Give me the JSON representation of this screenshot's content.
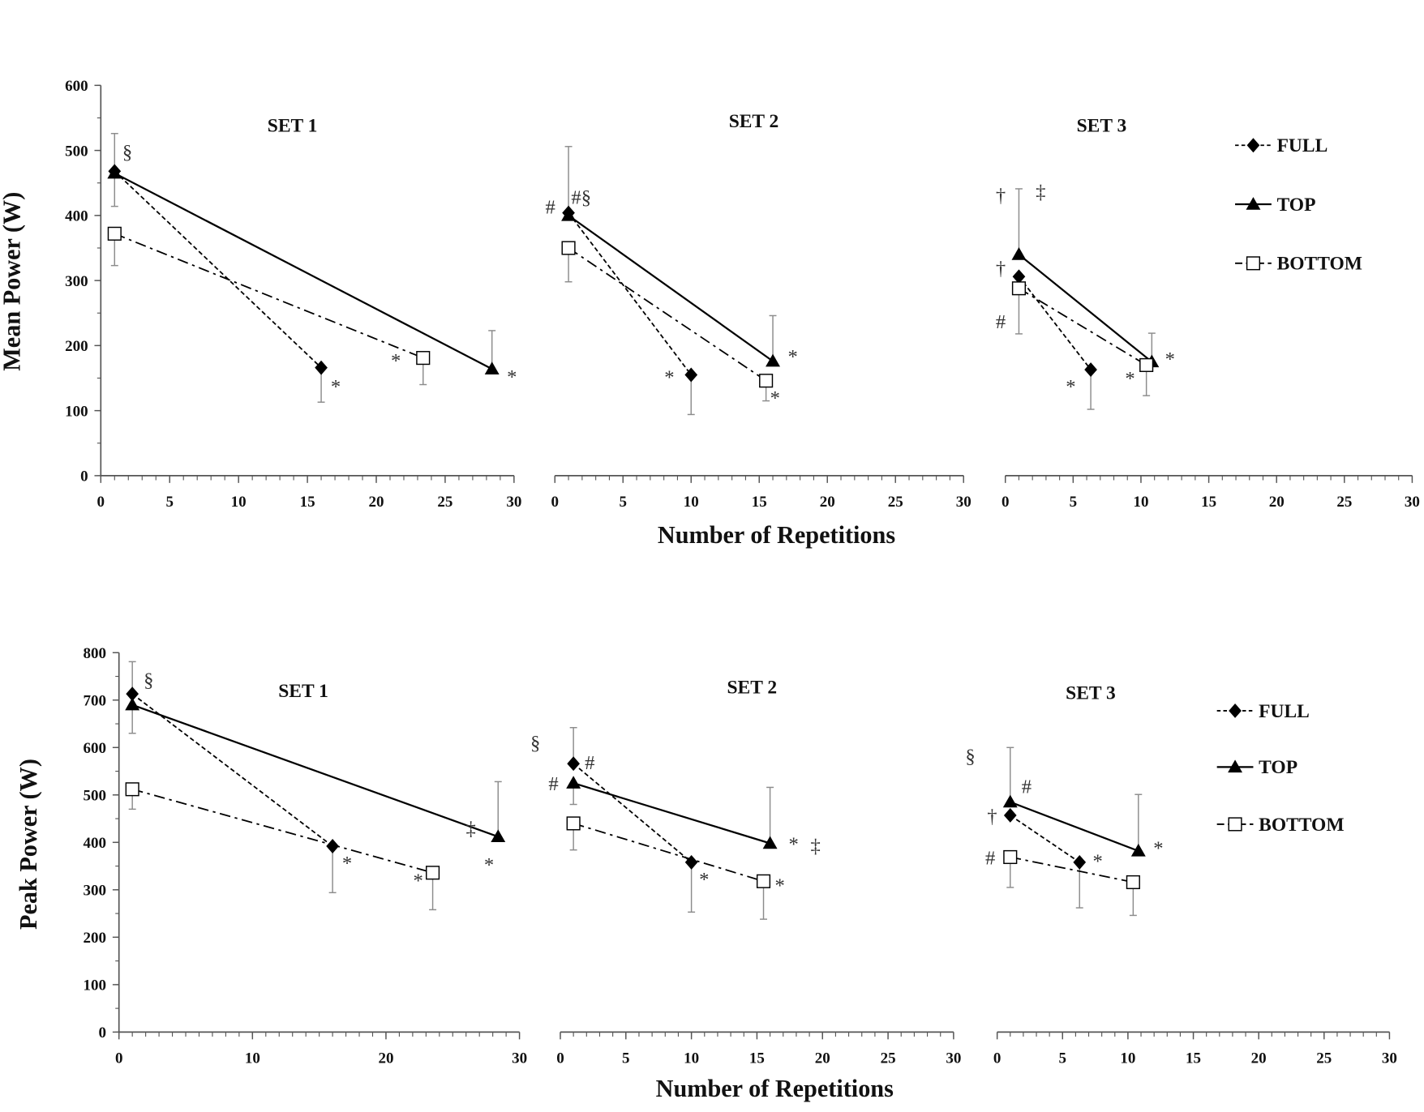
{
  "chart_data": [
    {
      "type": "line",
      "ylabel": "Mean Power (W)",
      "xlabel": "Number of Repetitions",
      "ylim": [
        0,
        600
      ],
      "yticks": [
        0,
        100,
        200,
        300,
        400,
        500,
        600
      ],
      "legend": {
        "placement": "right",
        "entries": [
          "FULL",
          "TOP",
          "BOTTOM"
        ]
      },
      "panels": [
        {
          "title": "SET 1",
          "xlim": [
            0,
            30
          ],
          "xticks": [
            0,
            5,
            10,
            15,
            20,
            25,
            30
          ],
          "series": [
            {
              "name": "FULL",
              "x": [
                1,
                16
              ],
              "y": [
                468,
                166
              ],
              "err": [
                [
                  null,
                  526
                ],
                [
                  113,
                  null
                ]
              ]
            },
            {
              "name": "TOP",
              "x": [
                1,
                28.4
              ],
              "y": [
                465,
                164
              ],
              "err": [
                [
                  414,
                  null
                ],
                [
                  null,
                  223
                ]
              ]
            },
            {
              "name": "BOTTOM",
              "x": [
                1,
                23.4
              ],
              "y": [
                372,
                181
              ],
              "err": [
                [
                  323,
                  null
                ],
                [
                  140,
                  null
                ]
              ]
            }
          ],
          "annotations": [
            {
              "text": "§",
              "series": "FULL",
              "point": 0
            },
            {
              "text": "*",
              "series": "FULL",
              "point": 1
            },
            {
              "text": "*",
              "series": "BOTTOM",
              "point": 1
            },
            {
              "text": "*",
              "series": "TOP",
              "point": 1
            }
          ]
        },
        {
          "title": "SET 2",
          "xlim": [
            0,
            30
          ],
          "xticks": [
            0,
            5,
            10,
            15,
            20,
            25,
            30
          ],
          "series": [
            {
              "name": "FULL",
              "x": [
                1,
                10
              ],
              "y": [
                404,
                155
              ],
              "err": [
                [
                  null,
                  506
                ],
                [
                  94,
                  null
                ]
              ]
            },
            {
              "name": "TOP",
              "x": [
                1,
                16
              ],
              "y": [
                400,
                176
              ],
              "err": [
                [
                  null,
                  null
                ],
                [
                  null,
                  246
                ]
              ]
            },
            {
              "name": "BOTTOM",
              "x": [
                1,
                15.5
              ],
              "y": [
                350,
                146
              ],
              "err": [
                [
                  298,
                  null
                ],
                [
                  115,
                  null
                ]
              ]
            }
          ],
          "annotations": [
            {
              "text": "#§",
              "series": "FULL",
              "point": 0
            },
            {
              "text": "#",
              "series": "TOP",
              "point": 0
            },
            {
              "text": "*",
              "series": "FULL",
              "point": 1
            },
            {
              "text": "*",
              "series": "TOP",
              "point": 1
            },
            {
              "text": "*",
              "series": "BOTTOM",
              "point": 1
            }
          ]
        },
        {
          "title": "SET 3",
          "xlim": [
            0,
            30
          ],
          "xticks": [
            0,
            5,
            10,
            15,
            20,
            25,
            30
          ],
          "series": [
            {
              "name": "FULL",
              "x": [
                1,
                6.3
              ],
              "y": [
                306,
                163
              ],
              "err": [
                [
                  null,
                  null
                ],
                [
                  102,
                  null
                ]
              ]
            },
            {
              "name": "TOP",
              "x": [
                1,
                10.8
              ],
              "y": [
                340,
                175
              ],
              "err": [
                [
                  null,
                  441
                ],
                [
                  null,
                  219
                ]
              ]
            },
            {
              "name": "BOTTOM",
              "x": [
                1,
                10.4
              ],
              "y": [
                288,
                170
              ],
              "err": [
                [
                  218,
                  null
                ],
                [
                  123,
                  null
                ]
              ]
            }
          ],
          "annotations": [
            {
              "text": "†",
              "series": "TOP",
              "point": 0
            },
            {
              "text": "†",
              "series": "FULL",
              "point": 0
            },
            {
              "text": "#",
              "series": "BOTTOM",
              "point": 0
            },
            {
              "text": "‡",
              "series": "TOP",
              "point": 0
            },
            {
              "text": "*",
              "series": "FULL",
              "point": 1
            },
            {
              "text": "*",
              "series": "BOTTOM",
              "point": 1
            },
            {
              "text": "*",
              "series": "TOP",
              "point": 1
            }
          ]
        }
      ]
    },
    {
      "type": "line",
      "ylabel": "Peak Power (W)",
      "xlabel": "Number of Repetitions",
      "ylim": [
        0,
        800
      ],
      "yticks": [
        0,
        100,
        200,
        300,
        400,
        500,
        600,
        700,
        800
      ],
      "legend": {
        "placement": "right",
        "entries": [
          "FULL",
          "TOP",
          "BOTTOM"
        ]
      },
      "panels": [
        {
          "title": "SET 1",
          "xlim": [
            0,
            30
          ],
          "xticks": [
            0,
            10,
            20,
            30
          ],
          "series": [
            {
              "name": "FULL",
              "x": [
                1,
                16
              ],
              "y": [
                713,
                392
              ],
              "err": [
                [
                  null,
                  781
                ],
                [
                  294,
                  null
                ]
              ]
            },
            {
              "name": "TOP",
              "x": [
                1,
                28.4
              ],
              "y": [
                690,
                412
              ],
              "err": [
                [
                  630,
                  null
                ],
                [
                  null,
                  528
                ]
              ]
            },
            {
              "name": "BOTTOM",
              "x": [
                1,
                23.5
              ],
              "y": [
                512,
                336
              ],
              "err": [
                [
                  470,
                  null
                ],
                [
                  258,
                  null
                ]
              ]
            }
          ],
          "annotations": [
            {
              "text": "§",
              "series": "FULL",
              "point": 0
            },
            {
              "text": "*",
              "series": "FULL",
              "point": 1
            },
            {
              "text": "*",
              "series": "BOTTOM",
              "point": 1
            },
            {
              "text": "‡",
              "series": "TOP",
              "point": 1
            },
            {
              "text": "*",
              "series": "TOP",
              "point": 1
            }
          ]
        },
        {
          "title": "SET 2",
          "xlim": [
            0,
            30
          ],
          "xticks": [
            0,
            5,
            10,
            15,
            20,
            25,
            30
          ],
          "series": [
            {
              "name": "FULL",
              "x": [
                1,
                10
              ],
              "y": [
                566,
                358
              ],
              "err": [
                [
                  null,
                  642
                ],
                [
                  253,
                  null
                ]
              ]
            },
            {
              "name": "TOP",
              "x": [
                1,
                16
              ],
              "y": [
                525,
                398
              ],
              "err": [
                [
                  480,
                  null
                ],
                [
                  null,
                  516
                ]
              ]
            },
            {
              "name": "BOTTOM",
              "x": [
                1,
                15.5
              ],
              "y": [
                440,
                318
              ],
              "err": [
                [
                  384,
                  null
                ],
                [
                  238,
                  null
                ]
              ]
            }
          ],
          "annotations": [
            {
              "text": "§",
              "series": "FULL",
              "point": 0
            },
            {
              "text": "#",
              "series": "FULL",
              "point": 0
            },
            {
              "text": "#",
              "series": "TOP",
              "point": 0
            },
            {
              "text": "*",
              "series": "FULL",
              "point": 1
            },
            {
              "text": "*",
              "series": "TOP",
              "point": 1
            },
            {
              "text": "‡",
              "series": "TOP",
              "point": 1
            },
            {
              "text": "*",
              "series": "BOTTOM",
              "point": 1
            }
          ]
        },
        {
          "title": "SET 3",
          "xlim": [
            0,
            30
          ],
          "xticks": [
            0,
            5,
            10,
            15,
            20,
            25,
            30
          ],
          "series": [
            {
              "name": "FULL",
              "x": [
                1,
                6.3
              ],
              "y": [
                457,
                358
              ],
              "err": [
                [
                  null,
                  null
                ],
                [
                  262,
                  null
                ]
              ]
            },
            {
              "name": "TOP",
              "x": [
                1,
                10.8
              ],
              "y": [
                485,
                382
              ],
              "err": [
                [
                  null,
                  600
                ],
                [
                  null,
                  501
                ]
              ]
            },
            {
              "name": "BOTTOM",
              "x": [
                1,
                10.4
              ],
              "y": [
                369,
                316
              ],
              "err": [
                [
                  305,
                  null
                ],
                [
                  246,
                  null
                ]
              ]
            }
          ],
          "annotations": [
            {
              "text": "§",
              "series": "FULL",
              "point": 0
            },
            {
              "text": "#",
              "series": "TOP",
              "point": 0
            },
            {
              "text": "†",
              "series": "FULL",
              "point": 0
            },
            {
              "text": "#",
              "series": "BOTTOM",
              "point": 0
            },
            {
              "text": "*",
              "series": "FULL",
              "point": 1
            },
            {
              "text": "*",
              "series": "TOP",
              "point": 1
            }
          ]
        }
      ]
    }
  ],
  "colors": {
    "lines": "#000000",
    "error_bars": "#8c8c8c",
    "axes": "#555555"
  }
}
